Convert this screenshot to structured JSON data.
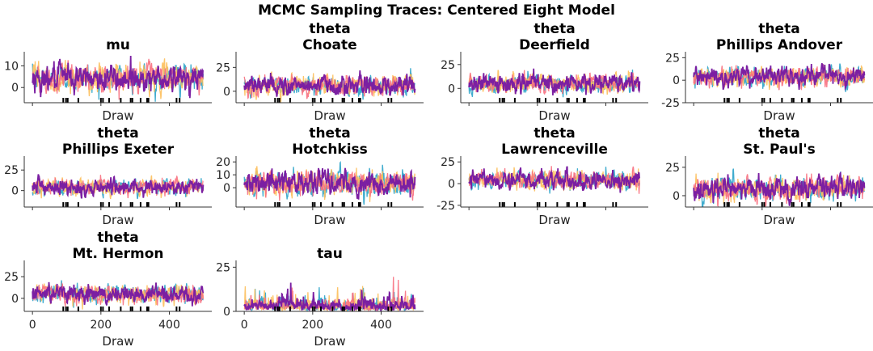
{
  "chart_data": {
    "type": "line",
    "title": "MCMC Sampling Traces: Centered Eight Model",
    "chain_colors": [
      "#2ba3c9",
      "#fdbf5b",
      "#f8707f",
      "#7b1fa2"
    ],
    "num_chains": 4,
    "draws": 500,
    "xlabel": "Draw",
    "xticks": [
      0,
      200,
      400
    ],
    "xlim": [
      -24,
      524
    ],
    "divergence_draws": [
      90,
      98,
      103,
      134,
      200,
      206,
      224,
      258,
      287,
      292,
      316,
      335,
      339,
      421,
      430
    ],
    "divergence_color": "#000000",
    "grid": false,
    "panels": [
      {
        "title_line1": "mu",
        "title_line2": "",
        "ylim": [
          -7,
          15
        ],
        "yticks": [
          0,
          10
        ],
        "mean": 4.4,
        "sd": 3.3,
        "show_xtick_labels": false
      },
      {
        "title_line1": "theta",
        "title_line2": "Choate",
        "ylim": [
          -12,
          38
        ],
        "yticks": [
          0,
          25
        ],
        "mean": 6.2,
        "sd": 5.5,
        "show_xtick_labels": false
      },
      {
        "title_line1": "theta",
        "title_line2": "Deerfield",
        "ylim": [
          -15,
          35
        ],
        "yticks": [
          0,
          25
        ],
        "mean": 5.0,
        "sd": 5.0,
        "show_xtick_labels": false
      },
      {
        "title_line1": "theta",
        "title_line2": "Phillips Andover",
        "ylim": [
          -25,
          28
        ],
        "yticks": [
          -25,
          0,
          25
        ],
        "mean": 4.0,
        "sd": 5.5,
        "show_xtick_labels": false
      },
      {
        "title_line1": "theta",
        "title_line2": "Phillips Exeter",
        "ylim": [
          -20,
          38
        ],
        "yticks": [
          0,
          25
        ],
        "mean": 4.5,
        "sd": 5.0,
        "show_xtick_labels": false
      },
      {
        "title_line1": "theta",
        "title_line2": "Hotchkiss",
        "ylim": [
          -15,
          22
        ],
        "yticks": [
          0,
          10,
          20
        ],
        "mean": 3.6,
        "sd": 5.0,
        "show_xtick_labels": false
      },
      {
        "title_line1": "theta",
        "title_line2": "Lawrenceville",
        "ylim": [
          -27,
          28
        ],
        "yticks": [
          -25,
          0,
          25
        ],
        "mean": 4.0,
        "sd": 5.5,
        "show_xtick_labels": false
      },
      {
        "title_line1": "theta",
        "title_line2": "St. Paul's",
        "ylim": [
          -10,
          32
        ],
        "yticks": [
          0,
          25
        ],
        "mean": 6.5,
        "sd": 5.5,
        "show_xtick_labels": false
      },
      {
        "title_line1": "theta",
        "title_line2": "Mt. Hermon",
        "ylim": [
          -15,
          40
        ],
        "yticks": [
          0,
          25
        ],
        "mean": 4.8,
        "sd": 5.5,
        "show_xtick_labels": true
      },
      {
        "title_line1": "tau",
        "title_line2": "",
        "ylim": [
          0,
          27
        ],
        "yticks": [
          0,
          25
        ],
        "mean": 4.0,
        "sd": 3.5,
        "show_xtick_labels": true
      }
    ]
  }
}
